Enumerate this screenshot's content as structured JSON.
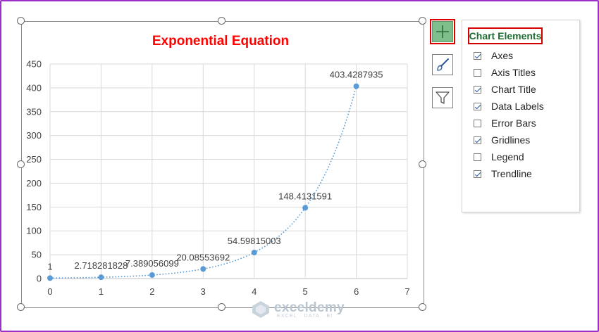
{
  "chart_data": {
    "type": "scatter",
    "title": "Exponential  Equation",
    "title_color": "#ff0000",
    "marker_color": "#5b9bd5",
    "x": [
      0,
      1,
      2,
      3,
      4,
      5,
      6
    ],
    "y": [
      1,
      2.718281828,
      7.389056099,
      20.08553692,
      54.59815003,
      148.4131591,
      403.4287935
    ],
    "data_labels": [
      "1",
      "2.718281828",
      "7.389056099",
      "20.08553692",
      "54.59815003",
      "148.4131591",
      "403.4287935"
    ],
    "trendline": "exponential (dotted)",
    "xlim": [
      0,
      7
    ],
    "ylim": [
      0,
      450
    ],
    "x_ticks": [
      "0",
      "1",
      "2",
      "3",
      "4",
      "5",
      "6",
      "7"
    ],
    "y_ticks": [
      "0",
      "50",
      "100",
      "150",
      "200",
      "250",
      "300",
      "350",
      "400",
      "450"
    ],
    "grid": true,
    "xlabel": "",
    "ylabel": ""
  },
  "chart_tools": {
    "elements_button": "chart-elements-plus",
    "styles_button": "brush-icon",
    "filters_button": "funnel-icon"
  },
  "panel": {
    "title": "Chart Elements",
    "items": [
      {
        "label": "Axes",
        "checked": true
      },
      {
        "label": "Axis Titles",
        "checked": false
      },
      {
        "label": "Chart Title",
        "checked": true
      },
      {
        "label": "Data Labels",
        "checked": true
      },
      {
        "label": "Error Bars",
        "checked": false
      },
      {
        "label": "Gridlines",
        "checked": true
      },
      {
        "label": "Legend",
        "checked": false
      },
      {
        "label": "Trendline",
        "checked": true
      }
    ]
  },
  "watermark": {
    "name": "exceldemy",
    "tagline": "EXCEL · DATA · BI"
  }
}
